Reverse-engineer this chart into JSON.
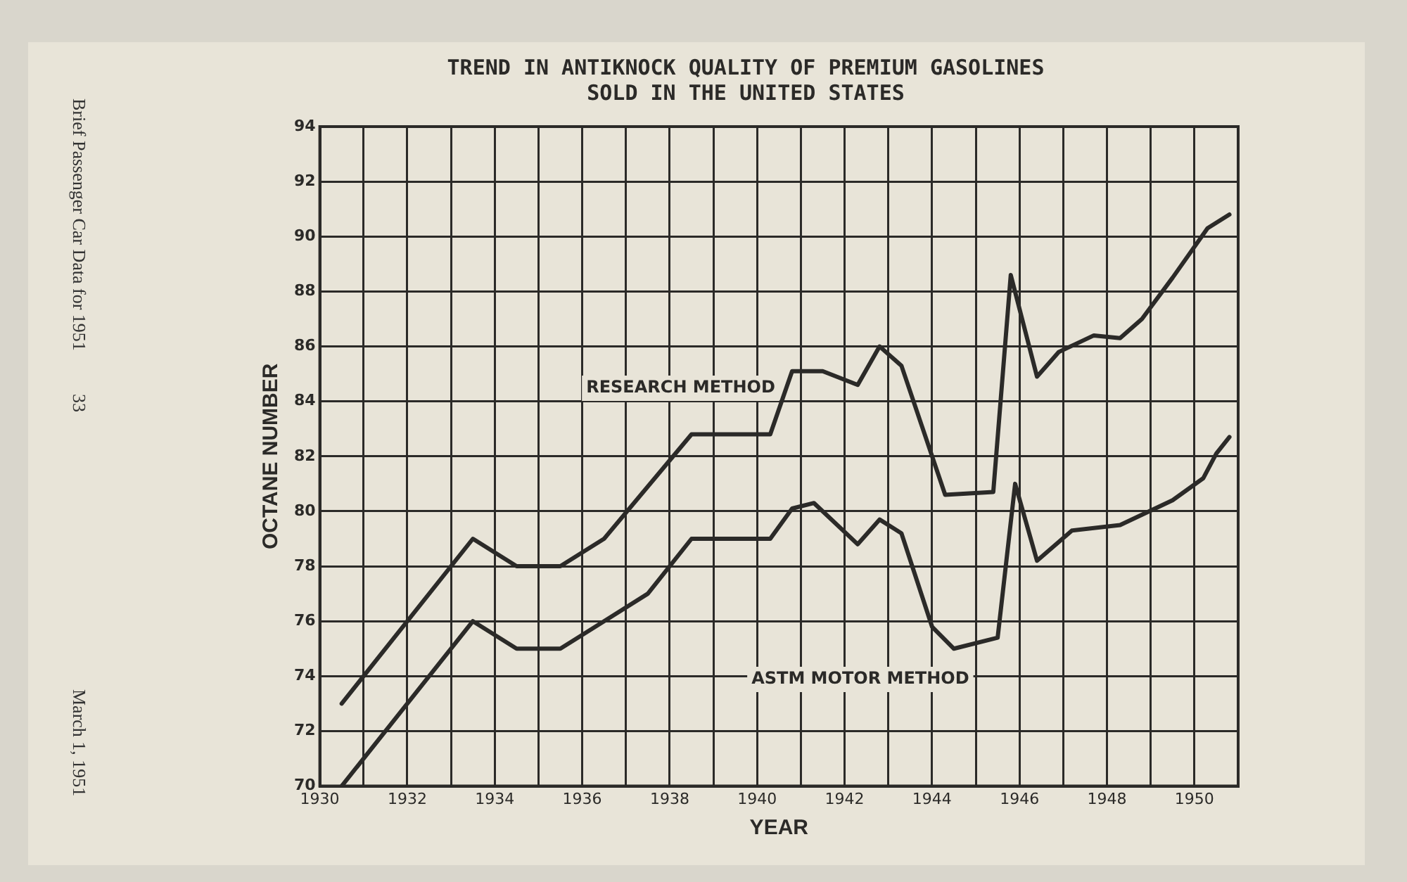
{
  "chart_data": {
    "type": "line",
    "title": "TREND IN ANTIKNOCK QUALITY OF PREMIUM GASOLINES\nSOLD IN THE UNITED STATES",
    "xlabel": "YEAR",
    "ylabel": "OCTANE NUMBER",
    "series": [
      {
        "name": "RESEARCH METHOD",
        "color": "#2b2a28",
        "x": [
          1930.5,
          1933.5,
          1934.5,
          1935.5,
          1936.5,
          1938.5,
          1940.3,
          1940.8,
          1941.5,
          1942.3,
          1942.8,
          1943.3,
          1944.3,
          1945.4,
          1945.8,
          1946.4,
          1946.9,
          1947.7,
          1948.3,
          1948.8,
          1949.5,
          1950.3,
          1950.8
        ],
        "values": [
          73,
          79,
          78,
          78,
          79,
          82.8,
          82.8,
          85.1,
          85.1,
          84.6,
          86,
          85.3,
          80.6,
          80.7,
          88.6,
          84.9,
          85.8,
          86.4,
          86.3,
          87,
          88.5,
          90.3,
          90.8
        ]
      },
      {
        "name": "ASTM MOTOR METHOD",
        "color": "#2b2a28",
        "x": [
          1930.5,
          1933.5,
          1934.5,
          1935.5,
          1936.5,
          1937.5,
          1938.5,
          1940.3,
          1940.8,
          1941.3,
          1942.3,
          1942.8,
          1943.3,
          1944.0,
          1944.5,
          1945.5,
          1945.9,
          1946.4,
          1947.2,
          1948.3,
          1949.5,
          1950.2,
          1950.5,
          1950.8
        ],
        "values": [
          70,
          76,
          75,
          75,
          76,
          77,
          79,
          79,
          80.1,
          80.3,
          78.8,
          79.7,
          79.2,
          75.8,
          75,
          75.4,
          81,
          78.2,
          79.3,
          79.5,
          80.4,
          81.2,
          82.1,
          82.7
        ]
      }
    ],
    "xlim": [
      1930,
      1951
    ],
    "ylim": [
      70,
      94
    ],
    "xticks": [
      1930,
      {
        "value": 1931,
        "label": null
      },
      1932,
      {
        "value": 1933,
        "label": null
      },
      1934,
      {
        "value": 1935,
        "label": null
      },
      1936,
      {
        "value": 1937,
        "label": null
      },
      1938,
      {
        "value": 1939,
        "label": null
      },
      1940,
      {
        "value": 1941,
        "label": null
      },
      1942,
      {
        "value": 1943,
        "label": null
      },
      1944,
      {
        "value": 1945,
        "label": null
      },
      1946,
      {
        "value": 1947,
        "label": null
      },
      1948,
      {
        "value": 1949,
        "label": null
      },
      1950,
      {
        "value": 1951,
        "label": null
      }
    ],
    "yticks": [
      70,
      72,
      74,
      76,
      78,
      80,
      82,
      84,
      86,
      88,
      90,
      92,
      94
    ],
    "grid": true,
    "legend": false,
    "marker": "none",
    "line_style": "solid",
    "annotations": [
      "Brief Passenger Car Data for 1951",
      "33",
      "March 1, 1951"
    ]
  }
}
